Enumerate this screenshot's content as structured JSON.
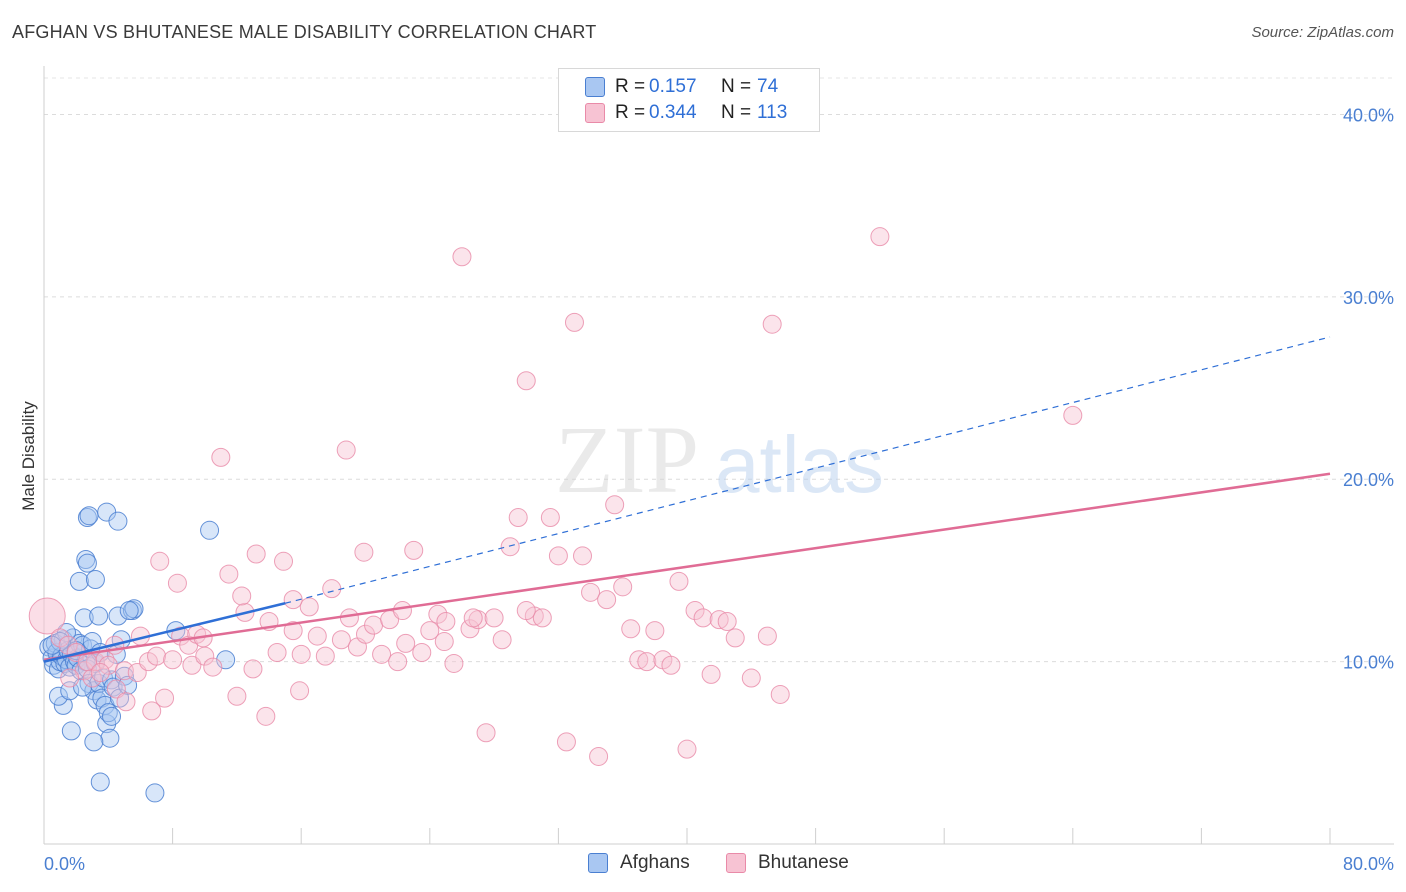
{
  "header": {
    "title": "AFGHAN VS BHUTANESE MALE DISABILITY CORRELATION CHART",
    "source": "Source: ZipAtlas.com"
  },
  "watermark": {
    "zip": "ZIP",
    "atlas": "atlas"
  },
  "legend": {
    "rows": [
      {
        "r_label": "R =",
        "r_value": "0.157",
        "n_label": "N =",
        "n_value": "74",
        "color": "#7aa7e8"
      },
      {
        "r_label": "R =",
        "r_value": "0.344",
        "n_label": "N =",
        "n_value": "113",
        "color": "#f0a0b8"
      }
    ]
  },
  "bottom_legend": {
    "afghans": "Afghans",
    "bhutanese": "Bhutanese"
  },
  "colors": {
    "afghan_fill": "#a9c7f2",
    "afghan_stroke": "#4a7fd1",
    "afghan_line": "#2f6fd6",
    "bhutanese_fill": "#f7c3d3",
    "bhutanese_stroke": "#e98aa8",
    "bhutanese_line": "#e06c95",
    "tick_text": "#4a7fd1"
  },
  "chart_data": {
    "type": "scatter",
    "title": "AFGHAN VS BHUTANESE MALE DISABILITY CORRELATION CHART",
    "xlabel": "",
    "ylabel": "Male Disability",
    "xlim": [
      0,
      80
    ],
    "ylim": [
      0,
      42
    ],
    "x_tick_labels": [
      "0.0%",
      "80.0%"
    ],
    "y_ticks": [
      10,
      20,
      30,
      40
    ],
    "y_tick_labels": [
      "10.0%",
      "20.0%",
      "30.0%",
      "40.0%"
    ],
    "grid": true,
    "series": [
      {
        "name": "Afghans",
        "r": 0.157,
        "n": 74,
        "trend": {
          "x0": 0,
          "y0": 10.0,
          "x1": 15,
          "y1": 13.2,
          "x_dash_end": 80,
          "y_dash_end": 27.8
        },
        "points": [
          [
            0.3,
            10.8
          ],
          [
            0.5,
            10.2
          ],
          [
            0.6,
            9.8
          ],
          [
            0.7,
            11.0
          ],
          [
            0.8,
            10.5
          ],
          [
            0.9,
            9.6
          ],
          [
            1.0,
            10.0
          ],
          [
            1.1,
            10.3
          ],
          [
            1.2,
            11.2
          ],
          [
            1.3,
            9.9
          ],
          [
            1.4,
            10.1
          ],
          [
            1.5,
            10.6
          ],
          [
            1.6,
            9.7
          ],
          [
            1.7,
            10.4
          ],
          [
            1.8,
            11.3
          ],
          [
            1.9,
            10.0
          ],
          [
            2.0,
            9.8
          ],
          [
            2.1,
            10.2
          ],
          [
            2.2,
            11.0
          ],
          [
            2.3,
            9.5
          ],
          [
            2.4,
            10.9
          ],
          [
            2.5,
            12.4
          ],
          [
            2.6,
            10.0
          ],
          [
            2.7,
            9.6
          ],
          [
            2.8,
            8.8
          ],
          [
            2.9,
            10.7
          ],
          [
            3.0,
            11.1
          ],
          [
            3.1,
            8.4
          ],
          [
            3.2,
            9.9
          ],
          [
            3.3,
            7.9
          ],
          [
            3.4,
            8.8
          ],
          [
            3.5,
            10.5
          ],
          [
            3.6,
            8.0
          ],
          [
            3.7,
            9.1
          ],
          [
            3.8,
            7.6
          ],
          [
            3.9,
            6.6
          ],
          [
            4.0,
            7.2
          ],
          [
            4.1,
            5.8
          ],
          [
            4.2,
            9.0
          ],
          [
            4.3,
            8.6
          ],
          [
            4.5,
            10.4
          ],
          [
            4.6,
            12.5
          ],
          [
            4.7,
            8.0
          ],
          [
            4.8,
            11.2
          ],
          [
            5.0,
            9.2
          ],
          [
            5.2,
            8.7
          ],
          [
            2.2,
            14.4
          ],
          [
            2.6,
            15.6
          ],
          [
            2.7,
            15.4
          ],
          [
            3.2,
            14.5
          ],
          [
            2.7,
            17.9
          ],
          [
            2.8,
            18.0
          ],
          [
            3.9,
            18.2
          ],
          [
            4.6,
            17.7
          ],
          [
            3.4,
            12.5
          ],
          [
            5.5,
            12.8
          ],
          [
            5.6,
            12.9
          ],
          [
            5.3,
            12.8
          ],
          [
            8.2,
            11.7
          ],
          [
            10.3,
            17.2
          ],
          [
            11.3,
            10.1
          ],
          [
            3.5,
            3.4
          ],
          [
            6.9,
            2.8
          ],
          [
            1.7,
            6.2
          ],
          [
            1.2,
            7.6
          ],
          [
            0.9,
            8.1
          ],
          [
            1.6,
            8.4
          ],
          [
            2.4,
            8.6
          ],
          [
            1.4,
            11.6
          ],
          [
            1.0,
            11.1
          ],
          [
            3.1,
            5.6
          ],
          [
            4.2,
            7.0
          ],
          [
            0.5,
            10.9
          ],
          [
            2.0,
            10.6
          ]
        ]
      },
      {
        "name": "Bhutanese",
        "r": 0.344,
        "n": 113,
        "trend": {
          "x0": 0,
          "y0": 10.1,
          "x1": 80,
          "y1": 20.3
        },
        "points": [
          [
            0.2,
            12.5
          ],
          [
            1.0,
            11.3
          ],
          [
            1.5,
            10.9
          ],
          [
            2.0,
            10.5
          ],
          [
            2.5,
            9.5
          ],
          [
            3.0,
            9.1
          ],
          [
            3.2,
            10.0
          ],
          [
            3.8,
            10.1
          ],
          [
            4.0,
            9.8
          ],
          [
            4.5,
            8.5
          ],
          [
            5.0,
            9.5
          ],
          [
            5.1,
            7.8
          ],
          [
            5.8,
            9.4
          ],
          [
            6.0,
            11.4
          ],
          [
            6.5,
            10.0
          ],
          [
            7.0,
            10.3
          ],
          [
            7.2,
            15.5
          ],
          [
            7.5,
            8.0
          ],
          [
            8.0,
            10.1
          ],
          [
            8.3,
            14.3
          ],
          [
            8.5,
            11.4
          ],
          [
            9.0,
            10.9
          ],
          [
            9.2,
            9.8
          ],
          [
            9.5,
            11.5
          ],
          [
            10.0,
            10.3
          ],
          [
            10.5,
            9.7
          ],
          [
            11.0,
            21.2
          ],
          [
            11.5,
            14.8
          ],
          [
            12.0,
            8.1
          ],
          [
            12.5,
            12.7
          ],
          [
            13.0,
            9.6
          ],
          [
            13.2,
            15.9
          ],
          [
            13.8,
            7.0
          ],
          [
            14.0,
            12.2
          ],
          [
            14.5,
            10.5
          ],
          [
            14.9,
            15.5
          ],
          [
            15.5,
            11.7
          ],
          [
            15.9,
            8.4
          ],
          [
            16.0,
            10.4
          ],
          [
            16.5,
            13.0
          ],
          [
            17.0,
            11.4
          ],
          [
            17.5,
            10.3
          ],
          [
            17.9,
            14.0
          ],
          [
            18.5,
            11.2
          ],
          [
            18.8,
            21.6
          ],
          [
            19.0,
            12.4
          ],
          [
            19.5,
            10.8
          ],
          [
            20.0,
            11.5
          ],
          [
            20.5,
            12.0
          ],
          [
            21.0,
            10.4
          ],
          [
            21.5,
            12.3
          ],
          [
            22.0,
            10.0
          ],
          [
            22.5,
            11.0
          ],
          [
            23.0,
            16.1
          ],
          [
            23.5,
            10.5
          ],
          [
            24.0,
            11.7
          ],
          [
            24.5,
            12.6
          ],
          [
            25.0,
            12.2
          ],
          [
            25.5,
            9.9
          ],
          [
            26.0,
            32.2
          ],
          [
            26.5,
            11.8
          ],
          [
            27.0,
            12.3
          ],
          [
            27.5,
            6.1
          ],
          [
            28.0,
            12.4
          ],
          [
            28.5,
            11.2
          ],
          [
            29.0,
            16.3
          ],
          [
            29.5,
            17.9
          ],
          [
            30.0,
            25.4
          ],
          [
            30.5,
            12.5
          ],
          [
            31.0,
            12.4
          ],
          [
            31.5,
            17.9
          ],
          [
            32.0,
            15.8
          ],
          [
            32.5,
            5.6
          ],
          [
            33.0,
            28.6
          ],
          [
            33.5,
            15.8
          ],
          [
            34.0,
            13.8
          ],
          [
            34.5,
            4.8
          ],
          [
            35.0,
            13.4
          ],
          [
            35.5,
            18.6
          ],
          [
            36.0,
            14.1
          ],
          [
            36.5,
            11.8
          ],
          [
            37.0,
            10.1
          ],
          [
            37.5,
            10.0
          ],
          [
            38.0,
            11.7
          ],
          [
            38.5,
            10.1
          ],
          [
            39.0,
            9.8
          ],
          [
            39.5,
            14.4
          ],
          [
            40.0,
            5.2
          ],
          [
            40.5,
            12.8
          ],
          [
            41.0,
            12.4
          ],
          [
            41.5,
            9.3
          ],
          [
            42.0,
            12.3
          ],
          [
            42.5,
            12.2
          ],
          [
            43.0,
            11.3
          ],
          [
            44.0,
            9.1
          ],
          [
            45.0,
            11.4
          ],
          [
            45.3,
            28.5
          ],
          [
            45.8,
            8.2
          ],
          [
            52.0,
            33.3
          ],
          [
            64.0,
            23.5
          ],
          [
            1.6,
            9.1
          ],
          [
            2.7,
            10.0
          ],
          [
            3.5,
            9.4
          ],
          [
            4.4,
            10.9
          ],
          [
            6.7,
            7.3
          ],
          [
            9.9,
            11.3
          ],
          [
            12.3,
            13.6
          ],
          [
            15.5,
            13.4
          ],
          [
            19.9,
            16.0
          ],
          [
            22.3,
            12.8
          ],
          [
            24.9,
            11.1
          ],
          [
            26.7,
            12.4
          ],
          [
            30.0,
            12.8
          ]
        ]
      }
    ]
  }
}
